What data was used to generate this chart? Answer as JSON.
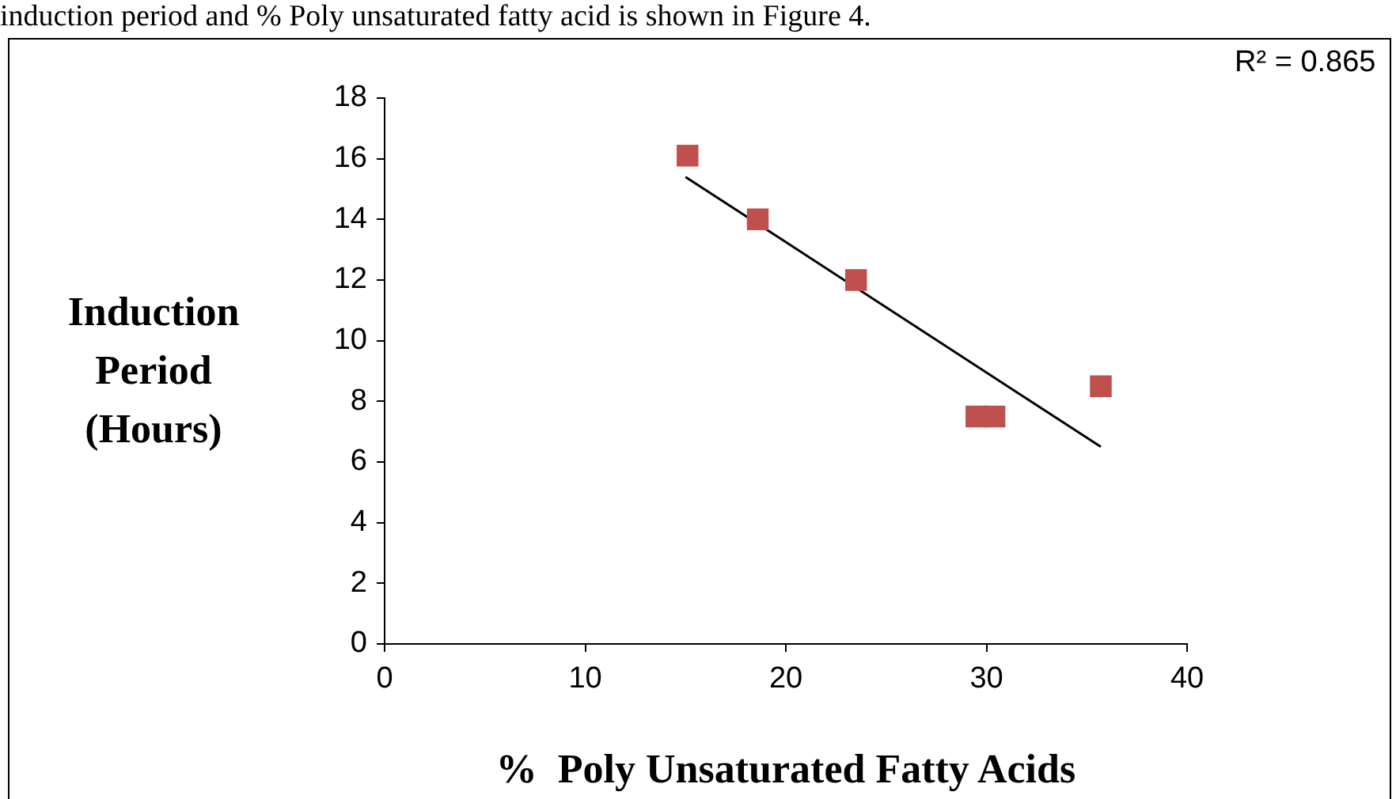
{
  "chart_data": {
    "type": "scatter",
    "xlabel": "%  Poly Unsaturated Fatty Acids",
    "ylabel": "Induction Period (Hours)",
    "annotations": [
      "induction period and % Poly unsaturated fatty acid is shown in Figure 4.",
      "R² = 0.865"
    ],
    "xlim": [
      0,
      40
    ],
    "xticks": [
      0,
      10,
      20,
      30,
      40
    ],
    "ylim": [
      0,
      18
    ],
    "yticks": [
      0,
      2,
      4,
      6,
      8,
      10,
      12,
      14,
      16,
      18
    ],
    "grid": false,
    "legend": false,
    "marker": "square",
    "series": [
      {
        "color": "#c0504d",
        "x": [
          15.1,
          18.6,
          23.5,
          29.5,
          30.4,
          35.7
        ],
        "values": [
          16.1,
          14,
          12,
          7.5,
          7.5,
          8.5
        ]
      },
      {
        "type": "line",
        "color": "#000000",
        "marker": "none",
        "x": [
          15,
          35.7
        ],
        "values": [
          15.4,
          6.5
        ]
      }
    ]
  }
}
